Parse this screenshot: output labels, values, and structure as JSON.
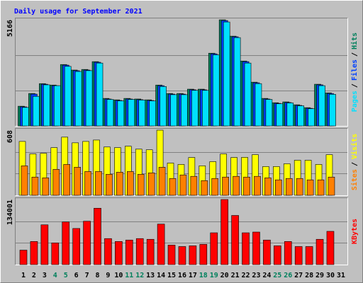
{
  "chart_data": {
    "type": "bar",
    "title": "Daily usage for September 2021",
    "categories": [
      "1",
      "2",
      "3",
      "4",
      "5",
      "6",
      "7",
      "8",
      "9",
      "10",
      "11",
      "12",
      "13",
      "14",
      "15",
      "16",
      "17",
      "18",
      "19",
      "20",
      "21",
      "22",
      "23",
      "24",
      "25",
      "26",
      "27",
      "28",
      "29",
      "30",
      "31"
    ],
    "category_colors": [
      "#000000",
      "#000000",
      "#000000",
      "#00805C",
      "#00805C",
      "#000000",
      "#000000",
      "#000000",
      "#000000",
      "#000000",
      "#00805C",
      "#00805C",
      "#000000",
      "#000000",
      "#000000",
      "#000000",
      "#000000",
      "#00805C",
      "#00805C",
      "#000000",
      "#000000",
      "#000000",
      "#000000",
      "#000000",
      "#00805C",
      "#00805C",
      "#000000",
      "#000000",
      "#000000",
      "#000000",
      "#000000"
    ],
    "legend_separator": "/",
    "grid_divisions": 3,
    "panels": [
      {
        "ylim": [
          0,
          5166
        ],
        "yticks": [
          5166
        ],
        "series": [
          {
            "name": "Hits",
            "color": "#00805C",
            "values": [
              960,
              1580,
              2060,
              1990,
              2990,
              2720,
              2750,
              3130,
              1340,
              1270,
              1340,
              1310,
              1270,
              1990,
              1580,
              1580,
              1790,
              1790,
              3540,
              5166,
              4370,
              3160,
              2130,
              1340,
              1130,
              1170,
              1030,
              890,
              2030,
              1610,
              null
            ]
          },
          {
            "name": "Files",
            "color": "#0040FF",
            "values": [
              930,
              1550,
              2030,
              1960,
              2960,
              2690,
              2720,
              3100,
              1310,
              1240,
              1310,
              1280,
              1240,
              1960,
              1550,
              1550,
              1760,
              1760,
              3510,
              5130,
              4340,
              3130,
              2100,
              1310,
              1100,
              1140,
              1000,
              860,
              2000,
              1580,
              null
            ]
          },
          {
            "name": "Pages",
            "color": "#00E0FF",
            "values": [
              900,
              1440,
              2000,
              1960,
              2900,
              2650,
              2690,
              3060,
              1290,
              1220,
              1290,
              1260,
              1220,
              1920,
              1520,
              1520,
              1730,
              1730,
              3460,
              5060,
              4300,
              3060,
              2060,
              1290,
              1080,
              1120,
              980,
              840,
              1960,
              1540,
              null
            ]
          }
        ]
      },
      {
        "ylim": [
          0,
          608
        ],
        "yticks": [
          608
        ],
        "series": [
          {
            "name": "Visits",
            "color": "#FFFF00",
            "values": [
              503,
              386,
              392,
              445,
              543,
              490,
              503,
              516,
              451,
              445,
              458,
              431,
              425,
              608,
              301,
              288,
              353,
              275,
              314,
              386,
              353,
              354,
              379,
              268,
              268,
              294,
              327,
              327,
              288,
              379,
              null
            ]
          },
          {
            "name": "Sites",
            "color": "#FF8000",
            "values": [
              275,
              170,
              163,
              242,
              288,
              262,
              222,
              222,
              196,
              216,
              222,
              196,
              209,
              262,
              157,
              190,
              177,
              137,
              157,
              170,
              177,
              170,
              177,
              163,
              144,
              157,
              157,
              144,
              144,
              170,
              null
            ]
          }
        ]
      },
      {
        "ylim": [
          0,
          134001
        ],
        "yticks": [
          134001
        ],
        "series": [
          {
            "name": "KBytes",
            "color": "#FF0000",
            "values": [
              29800,
              47600,
              81900,
              44700,
              87800,
              74400,
              89300,
              116100,
              53600,
              47600,
              50600,
              53600,
              52100,
              83400,
              40200,
              37200,
              38700,
              41700,
              65500,
              134001,
              101200,
              65500,
              67000,
              50600,
              38700,
              47600,
              37200,
              37200,
              52100,
              68500,
              null
            ]
          }
        ]
      }
    ]
  }
}
